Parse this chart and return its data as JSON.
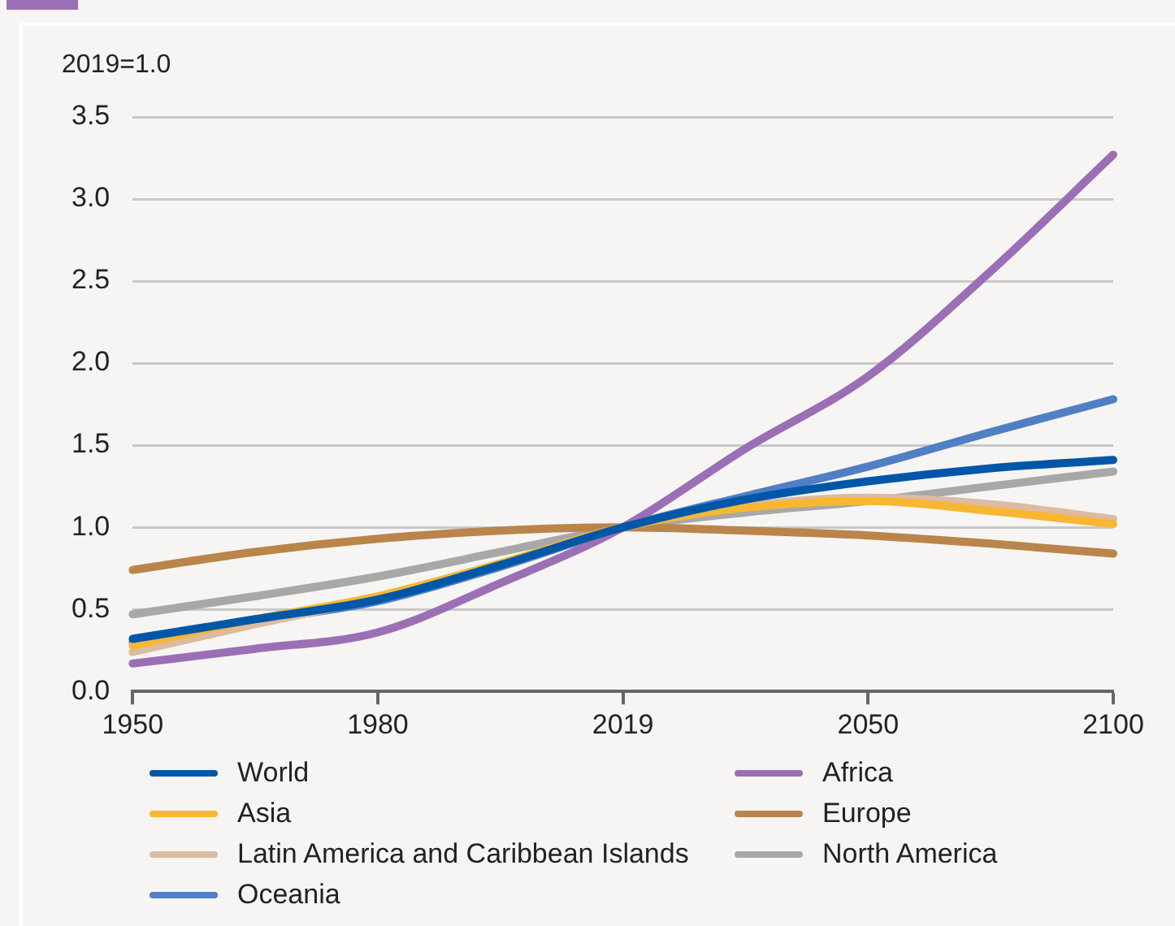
{
  "chart_data": {
    "type": "line",
    "ylabel": "2019=1.0",
    "categories": [
      "1950",
      null,
      "1980",
      null,
      "2019",
      null,
      "2050",
      null,
      "2100"
    ],
    "ylim": [
      0,
      3.5
    ],
    "yticks": [
      {
        "value": 0,
        "label": "0.0"
      },
      0.5,
      {
        "value": 1,
        "label": "1.0"
      },
      1.5,
      {
        "value": 2,
        "label": "2.0"
      },
      2.5,
      {
        "value": 3,
        "label": "3.0"
      },
      3.5
    ],
    "grid": "y",
    "legend": "bottom",
    "marker": "none",
    "line_style": "solid",
    "series": [
      {
        "name": "World",
        "color": "#0057a8",
        "values": [
          0.32,
          0.44,
          0.56,
          0.77,
          1.0,
          1.17,
          1.28,
          1.36,
          1.41
        ]
      },
      {
        "name": "Africa",
        "color": "#9b6fb5",
        "values": [
          0.17,
          0.26,
          0.36,
          0.66,
          1.0,
          1.48,
          1.92,
          2.56,
          3.27
        ]
      },
      {
        "name": "Asia",
        "color": "#f7b733",
        "values": [
          0.28,
          0.44,
          0.58,
          0.78,
          1.0,
          1.12,
          1.16,
          1.1,
          1.02
        ]
      },
      {
        "name": "Europe",
        "color": "#b9854a",
        "values": [
          0.74,
          0.85,
          0.93,
          0.98,
          1.0,
          0.98,
          0.95,
          0.9,
          0.84
        ]
      },
      {
        "name": "Latin America and Caribbean Islands",
        "color": "#dcbba0",
        "values": [
          0.24,
          0.41,
          0.57,
          0.78,
          1.0,
          1.13,
          1.18,
          1.14,
          1.05
        ]
      },
      {
        "name": "North America",
        "color": "#a8a8a8",
        "values": [
          0.47,
          0.58,
          0.7,
          0.85,
          1.0,
          1.09,
          1.16,
          1.25,
          1.34
        ]
      },
      {
        "name": "Oceania",
        "color": "#4f7fc4",
        "values": [
          0.3,
          0.43,
          0.55,
          0.76,
          1.0,
          1.19,
          1.37,
          1.58,
          1.78
        ]
      }
    ]
  }
}
